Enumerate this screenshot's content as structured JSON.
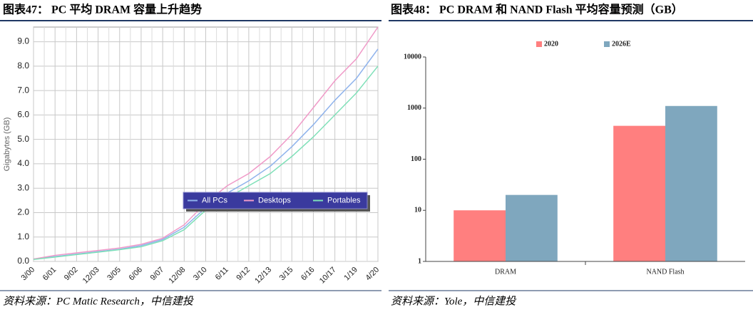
{
  "chart_data": [
    {
      "type": "line",
      "title": "图表47： PC 平均 DRAM 容量上升趋势",
      "source": "资料来源：PC Matic Research，中信建投",
      "ylabel": "Gigabytes (GB)",
      "categories": [
        "3/00",
        "6/01",
        "9/02",
        "12/03",
        "3/05",
        "6/06",
        "9/07",
        "12/08",
        "3/10",
        "6/11",
        "9/12",
        "12/13",
        "3/15",
        "6/16",
        "10/17",
        "1/19",
        "4/20"
      ],
      "series": [
        {
          "name": "All PCs",
          "color": "#8fb3ec",
          "values": [
            0.1,
            0.2,
            0.3,
            0.4,
            0.5,
            0.65,
            0.9,
            1.4,
            2.2,
            2.8,
            3.3,
            3.9,
            4.7,
            5.6,
            6.6,
            7.5,
            8.7
          ]
        },
        {
          "name": "Desktops",
          "color": "#f09ac8",
          "values": [
            0.1,
            0.25,
            0.35,
            0.45,
            0.55,
            0.7,
            0.95,
            1.5,
            2.4,
            3.1,
            3.6,
            4.3,
            5.2,
            6.3,
            7.4,
            8.3,
            9.6
          ]
        },
        {
          "name": "Portables",
          "color": "#7fe0b8",
          "values": [
            0.08,
            0.18,
            0.28,
            0.38,
            0.48,
            0.6,
            0.85,
            1.3,
            2.1,
            2.6,
            3.1,
            3.6,
            4.3,
            5.1,
            6.0,
            6.9,
            8.0
          ]
        }
      ],
      "ylim": [
        0,
        9.6
      ],
      "yticks": [
        {
          "value": 0,
          "label": "0.0"
        },
        {
          "value": 1,
          "label": "1.0"
        },
        {
          "value": 2,
          "label": "2.0"
        },
        {
          "value": 3,
          "label": "3.0"
        },
        {
          "value": 4,
          "label": "4.0"
        },
        {
          "value": 5,
          "label": "5.0"
        },
        {
          "value": 6,
          "label": "6.0"
        },
        {
          "value": 7,
          "label": "7.0"
        },
        {
          "value": 8,
          "label": "8.0"
        },
        {
          "value": 9,
          "label": "9.0"
        }
      ],
      "grid": true,
      "legend": "inside"
    },
    {
      "type": "bar",
      "title": "图表48： PC DRAM 和 NAND Flash 平均容量预测（GB）",
      "source": "资料来源：Yole，中信建投",
      "categories": [
        "DRAM",
        "NAND Flash"
      ],
      "series": [
        {
          "name": "2020",
          "color": "#ff7f7f",
          "values": [
            10,
            450
          ]
        },
        {
          "name": "2026E",
          "color": "#7fa7be",
          "values": [
            20,
            1100
          ]
        }
      ],
      "ylim": [
        1,
        10000
      ],
      "yticks": [
        1,
        10,
        100,
        1000,
        10000
      ],
      "yscale": "log",
      "grid": false,
      "legend": "top"
    }
  ]
}
